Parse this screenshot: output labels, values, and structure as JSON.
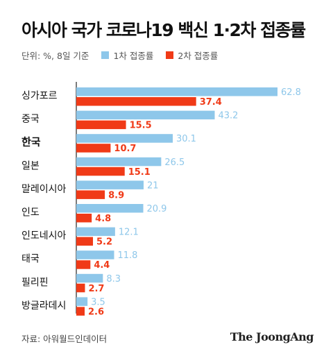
{
  "chart_data": {
    "type": "bar",
    "orientation": "horizontal",
    "title": "아시아 국가 코로나19 백신 1·2차 접종률",
    "unit_note": "단위: %, 8일 기준",
    "categories": [
      "싱가포르",
      "중국",
      "한국",
      "일본",
      "말레이시아",
      "인도",
      "인도네시아",
      "태국",
      "필리핀",
      "방글라데시"
    ],
    "highlight_category": "한국",
    "series": [
      {
        "name": "1차 접종률",
        "color": "#8ec7ea",
        "values": [
          62.8,
          43.2,
          30.1,
          26.5,
          21,
          20.9,
          12.1,
          11.8,
          8.3,
          3.5
        ],
        "labels": [
          "62.8",
          "43.2",
          "30.1",
          "26.5",
          "21",
          "20.9",
          "12.1",
          "11.8",
          "8.3",
          "3.5"
        ]
      },
      {
        "name": "2차 접종률",
        "color": "#f03a17",
        "values": [
          37.4,
          15.5,
          10.7,
          15.1,
          8.9,
          4.8,
          5.2,
          4.4,
          2.7,
          2.6
        ],
        "labels": [
          "37.4",
          "15.5",
          "10.7",
          "15.1",
          "8.9",
          "4.8",
          "5.2",
          "4.4",
          "2.7",
          "2.6"
        ]
      }
    ],
    "xlim": [
      0,
      62.8
    ],
    "grid": false,
    "legend": "top-left"
  },
  "footer": {
    "source": "자료: 아워월드인데이터",
    "brand": "The JoongAng"
  }
}
